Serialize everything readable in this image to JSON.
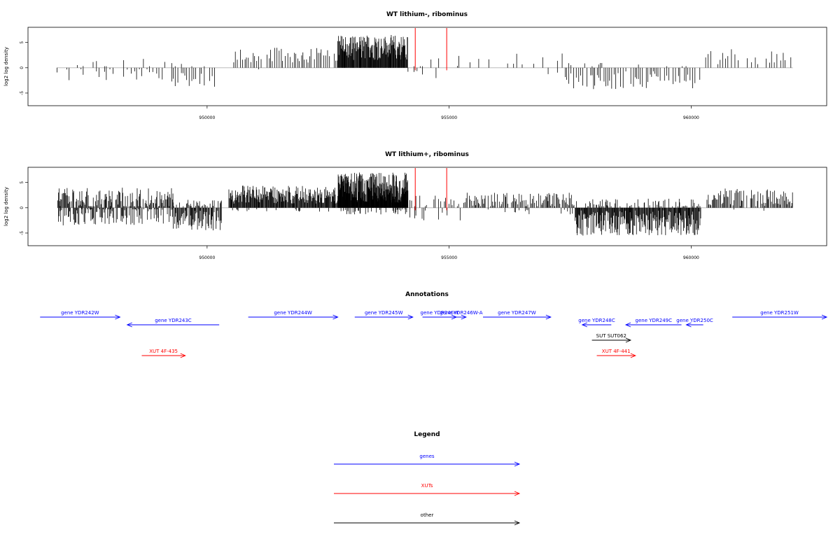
{
  "chart_data": [
    {
      "type": "bar",
      "title": "WT lithium-, ribominus",
      "ylabel": "log2 log density",
      "xlabel": "",
      "xlim": [
        946300,
        962800
      ],
      "ylim": [
        -7.5,
        8
      ],
      "x_ticks": [
        950000,
        955000,
        960000
      ],
      "x_tick_labels": [
        "950000",
        "955000",
        "960000"
      ],
      "y_ticks": [
        -5,
        0,
        5
      ],
      "y_tick_labels": [
        "-5",
        "0",
        "5"
      ],
      "grid": false,
      "series": [
        {
          "style": "coverage-spikes",
          "color": "#000000",
          "segments": [
            {
              "x0": 946900,
              "x1": 949300,
              "spacing": 60,
              "pos_mean": 1.0,
              "pos_amp": 1.8,
              "neg_mean": -1.4,
              "neg_amp": 1.8,
              "pos_prob": 0.35,
              "neg_prob": 0.65
            },
            {
              "x0": 949300,
              "x1": 950200,
              "spacing": 45,
              "pos_mean": 0.3,
              "pos_amp": 0.6,
              "neg_mean": -2.5,
              "neg_amp": 1.5,
              "pos_prob": 0.1,
              "neg_prob": 0.9
            },
            {
              "x0": 950550,
              "x1": 952700,
              "spacing": 40,
              "pos_mean": 2.5,
              "pos_amp": 1.5,
              "neg_mean": -0.5,
              "neg_amp": 0.3,
              "pos_prob": 0.9,
              "neg_prob": 0.05
            },
            {
              "x0": 952700,
              "x1": 954150,
              "spacing": 10,
              "pos_mean": 4.0,
              "pos_amp": 2.5,
              "neg_mean": -0.5,
              "neg_amp": 0.3,
              "pos_prob": 1.0,
              "neg_prob": 0.0
            },
            {
              "x0": 954150,
              "x1": 955200,
              "spacing": 70,
              "pos_mean": 1.5,
              "pos_amp": 1.5,
              "neg_mean": -1.5,
              "neg_amp": 1.0,
              "pos_prob": 0.4,
              "neg_prob": 0.25
            },
            {
              "x0": 955200,
              "x1": 957400,
              "spacing": 90,
              "pos_mean": 1.8,
              "pos_amp": 1.2,
              "neg_mean": -1.0,
              "neg_amp": 0.5,
              "pos_prob": 0.5,
              "neg_prob": 0.05
            },
            {
              "x0": 957400,
              "x1": 960200,
              "spacing": 40,
              "pos_mean": 0.5,
              "pos_amp": 0.5,
              "neg_mean": -2.5,
              "neg_amp": 1.8,
              "pos_prob": 0.1,
              "neg_prob": 0.85
            },
            {
              "x0": 960300,
              "x1": 962100,
              "spacing": 60,
              "pos_mean": 2.2,
              "pos_amp": 1.5,
              "neg_mean": -0.5,
              "neg_amp": 0.3,
              "pos_prob": 0.75,
              "neg_prob": 0.0
            }
          ]
        },
        {
          "style": "marker-lines",
          "color": "#ff0000",
          "x": [
            954300,
            954950
          ],
          "y_from": -0.5,
          "y_to": 8
        }
      ]
    },
    {
      "type": "bar",
      "title": "WT lithium+, ribominus",
      "ylabel": "log2 log density",
      "xlabel": "",
      "xlim": [
        946300,
        962800
      ],
      "ylim": [
        -7.5,
        8
      ],
      "x_ticks": [
        950000,
        955000,
        960000
      ],
      "x_tick_labels": [
        "950000",
        "955000",
        "960000"
      ],
      "y_ticks": [
        -5,
        0,
        5
      ],
      "y_tick_labels": [
        "-5",
        "0",
        "5"
      ],
      "grid": false,
      "series": [
        {
          "style": "coverage-spikes",
          "color": "#000000",
          "segments": [
            {
              "x0": 946900,
              "x1": 949300,
              "spacing": 15,
              "pos_mean": 1.8,
              "pos_amp": 2.2,
              "neg_mean": -1.5,
              "neg_amp": 2.0,
              "pos_prob": 0.85,
              "neg_prob": 0.65
            },
            {
              "x0": 949300,
              "x1": 950300,
              "spacing": 15,
              "pos_mean": 0.8,
              "pos_amp": 0.8,
              "neg_mean": -2.5,
              "neg_amp": 2.0,
              "pos_prob": 0.4,
              "neg_prob": 0.9
            },
            {
              "x0": 950450,
              "x1": 952700,
              "spacing": 12,
              "pos_mean": 2.6,
              "pos_amp": 1.8,
              "neg_mean": -0.5,
              "neg_amp": 0.3,
              "pos_prob": 1.0,
              "neg_prob": 0.05
            },
            {
              "x0": 952700,
              "x1": 954150,
              "spacing": 6,
              "pos_mean": 4.0,
              "pos_amp": 3.0,
              "neg_mean": -0.8,
              "neg_amp": 0.5,
              "pos_prob": 1.0,
              "neg_prob": 0.15
            },
            {
              "x0": 954150,
              "x1": 955300,
              "spacing": 35,
              "pos_mean": 1.2,
              "pos_amp": 1.2,
              "neg_mean": -1.5,
              "neg_amp": 1.0,
              "pos_prob": 0.6,
              "neg_prob": 0.35
            },
            {
              "x0": 955300,
              "x1": 957600,
              "spacing": 20,
              "pos_mean": 1.5,
              "pos_amp": 1.5,
              "neg_mean": -0.8,
              "neg_amp": 0.5,
              "pos_prob": 0.85,
              "neg_prob": 0.1
            },
            {
              "x0": 957600,
              "x1": 960200,
              "spacing": 12,
              "pos_mean": 0.8,
              "pos_amp": 1.0,
              "neg_mean": -3.0,
              "neg_amp": 2.5,
              "pos_prob": 0.3,
              "neg_prob": 1.0
            },
            {
              "x0": 960300,
              "x1": 962100,
              "spacing": 20,
              "pos_mean": 2.0,
              "pos_amp": 1.8,
              "neg_mean": -0.5,
              "neg_amp": 0.3,
              "pos_prob": 0.9,
              "neg_prob": 0.02
            }
          ]
        },
        {
          "style": "marker-lines",
          "color": "#ff0000",
          "x": [
            954300,
            954950
          ],
          "y_from": -0.5,
          "y_to": 8
        }
      ]
    },
    {
      "type": "annotation-track",
      "title": "Annotations",
      "xlim": [
        946300,
        962800
      ],
      "features": [
        {
          "label": "gene YDR242W",
          "start": 946550,
          "end": 948200,
          "strand": "+",
          "kind": "gene",
          "row": 1
        },
        {
          "label": "gene YDR243C",
          "start": 948350,
          "end": 950250,
          "strand": "-",
          "kind": "gene",
          "row": 2
        },
        {
          "label": "gene YDR244W",
          "start": 950850,
          "end": 952700,
          "strand": "+",
          "kind": "gene",
          "row": 1
        },
        {
          "label": "gene YDR245W",
          "start": 953050,
          "end": 954250,
          "strand": "+",
          "kind": "gene",
          "row": 1
        },
        {
          "label": "gene YDR246W",
          "start": 954450,
          "end": 955150,
          "strand": "+",
          "kind": "gene",
          "row": 1
        },
        {
          "label": "gene YDR246W-A",
          "start": 955150,
          "end": 955350,
          "strand": "+",
          "kind": "gene",
          "row": 1
        },
        {
          "label": "gene YDR247W",
          "start": 955700,
          "end": 957100,
          "strand": "+",
          "kind": "gene",
          "row": 1
        },
        {
          "label": "gene YDR248C",
          "start": 957750,
          "end": 958350,
          "strand": "-",
          "kind": "gene",
          "row": 2
        },
        {
          "label": "gene YDR249C",
          "start": 958650,
          "end": 959800,
          "strand": "-",
          "kind": "gene",
          "row": 2
        },
        {
          "label": "gene YDR250C",
          "start": 959900,
          "end": 960250,
          "strand": "-",
          "kind": "gene",
          "row": 2
        },
        {
          "label": "gene YDR251W",
          "start": 960850,
          "end": 962800,
          "strand": "+",
          "kind": "gene",
          "row": 1
        },
        {
          "label": "SUT SUT062",
          "start": 957950,
          "end": 958750,
          "strand": "+",
          "kind": "other",
          "row": 4
        },
        {
          "label": "XUT 4F-435",
          "start": 948650,
          "end": 949550,
          "strand": "+",
          "kind": "xut",
          "row": 6
        },
        {
          "label": "XUT 4F-441",
          "start": 958050,
          "end": 958850,
          "strand": "+",
          "kind": "xut",
          "row": 6
        }
      ]
    },
    {
      "type": "legend",
      "title": "Legend",
      "entries": [
        {
          "label": "genes",
          "kind": "gene"
        },
        {
          "label": "XUTs",
          "kind": "xut"
        },
        {
          "label": "other",
          "kind": "other"
        }
      ]
    }
  ],
  "colors": {
    "gene": "#0000ff",
    "xut": "#ff0000",
    "other": "#000000",
    "axis": "#000000",
    "baseline": "#b0b0b0"
  }
}
